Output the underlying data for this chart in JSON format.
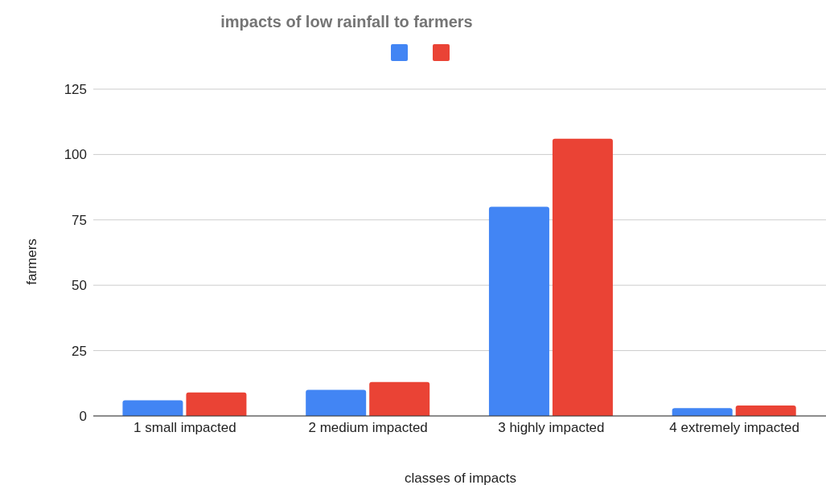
{
  "chart_data": {
    "type": "bar",
    "title": "impacts of low rainfall to farmers",
    "xlabel": "classes of impacts",
    "ylabel": "farmers",
    "categories": [
      "1 small impacted",
      "2 medium impacted",
      "3 highly impacted",
      "4 extremely impacted"
    ],
    "series": [
      {
        "color": "#4285f4",
        "values": [
          6,
          10,
          80,
          3
        ]
      },
      {
        "color": "#ea4335",
        "values": [
          9,
          13,
          106,
          4
        ]
      }
    ],
    "ylim": [
      0,
      125
    ],
    "yticks": [
      0,
      25,
      50,
      75,
      100,
      125
    ],
    "grid": "y"
  }
}
